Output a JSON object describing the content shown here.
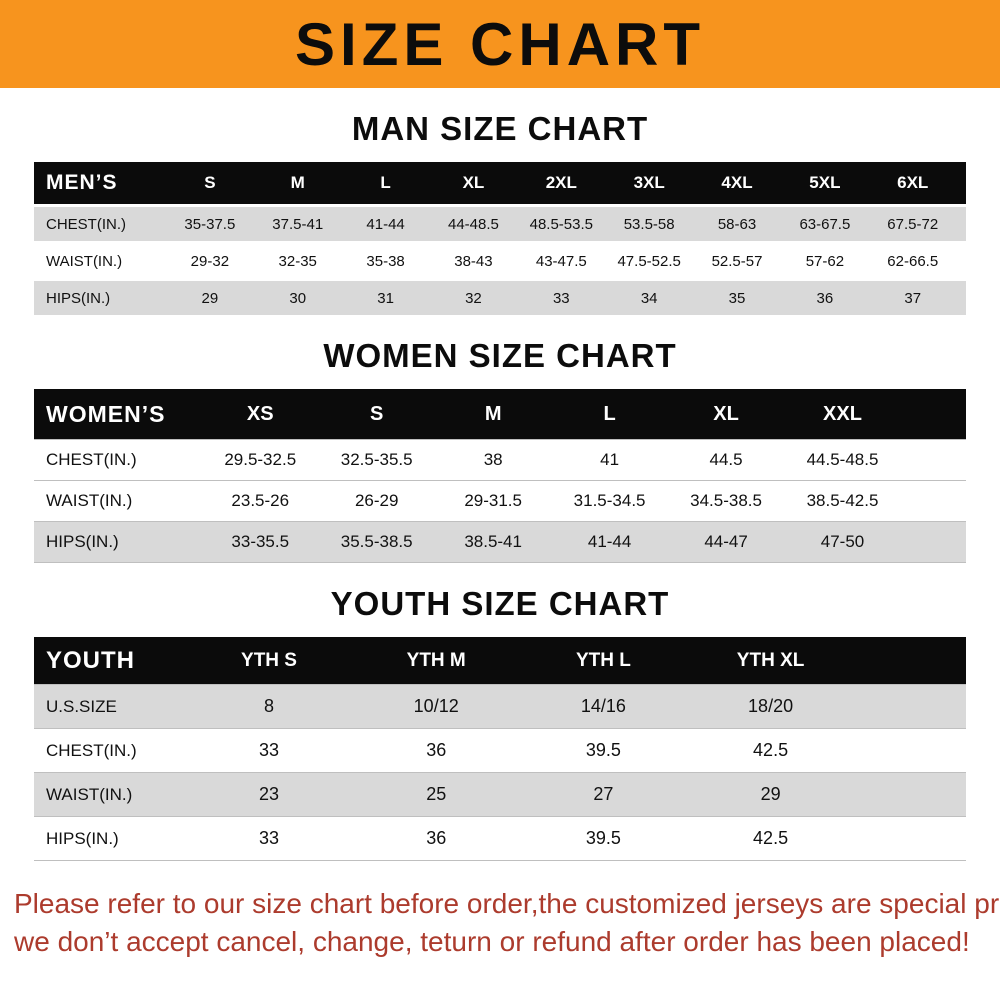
{
  "banner": {
    "title": "SIZE CHART",
    "bg_color": "#F7941E",
    "text_color": "#0c0c0c"
  },
  "colors": {
    "table_header_bg": "#0b0b0b",
    "table_header_text": "#ffffff",
    "shaded_row_bg": "#d9d9d9",
    "footer_text": "#AC3B2D"
  },
  "sections": [
    {
      "key": "men",
      "title": "MAN SIZE CHART",
      "header_label": "MEN’S",
      "columns": [
        "S",
        "M",
        "L",
        "XL",
        "2XL",
        "3XL",
        "4XL",
        "5XL",
        "6XL"
      ],
      "shaded_rows": [
        0,
        2
      ],
      "rows": [
        {
          "label": "CHEST(IN.)",
          "values": [
            "35-37.5",
            "37.5-41",
            "41-44",
            "44-48.5",
            "48.5-53.5",
            "53.5-58",
            "58-63",
            "63-67.5",
            "67.5-72"
          ]
        },
        {
          "label": "WAIST(IN.)",
          "values": [
            "29-32",
            "32-35",
            "35-38",
            "38-43",
            "43-47.5",
            "47.5-52.5",
            "52.5-57",
            "57-62",
            "62-66.5"
          ]
        },
        {
          "label": "HIPS(IN.)",
          "values": [
            "29",
            "30",
            "31",
            "32",
            "33",
            "34",
            "35",
            "36",
            "37"
          ]
        }
      ]
    },
    {
      "key": "women",
      "title": "WOMEN SIZE CHART",
      "header_label": "WOMEN’S",
      "columns": [
        "XS",
        "S",
        "M",
        "L",
        "XL",
        "XXL"
      ],
      "shaded_rows": [
        2
      ],
      "rows": [
        {
          "label": "CHEST(IN.)",
          "values": [
            "29.5-32.5",
            "32.5-35.5",
            "38",
            "41",
            "44.5",
            "44.5-48.5"
          ]
        },
        {
          "label": "WAIST(IN.)",
          "values": [
            "23.5-26",
            "26-29",
            "29-31.5",
            "31.5-34.5",
            "34.5-38.5",
            "38.5-42.5"
          ]
        },
        {
          "label": "HIPS(IN.)",
          "values": [
            "33-35.5",
            "35.5-38.5",
            "38.5-41",
            "41-44",
            "44-47",
            "47-50"
          ]
        }
      ]
    },
    {
      "key": "youth",
      "title": "YOUTH SIZE CHART",
      "header_label": "YOUTH",
      "columns": [
        "YTH S",
        "YTH M",
        "YTH L",
        "YTH XL"
      ],
      "shaded_rows": [
        0,
        2
      ],
      "rows": [
        {
          "label": "U.S.SIZE",
          "values": [
            "8",
            "10/12",
            "14/16",
            "18/20"
          ]
        },
        {
          "label": "CHEST(IN.)",
          "values": [
            "33",
            "36",
            "39.5",
            "42.5"
          ]
        },
        {
          "label": "WAIST(IN.)",
          "values": [
            "23",
            "25",
            "27",
            "29"
          ]
        },
        {
          "label": "HIPS(IN.)",
          "values": [
            "33",
            "36",
            "39.5",
            "42.5"
          ]
        }
      ]
    }
  ],
  "footer": {
    "line1": "Please refer to our size chart before order,the customized jerseys are special products,",
    "line2": "we don’t accept cancel, change, teturn or refund after order has been placed!"
  }
}
